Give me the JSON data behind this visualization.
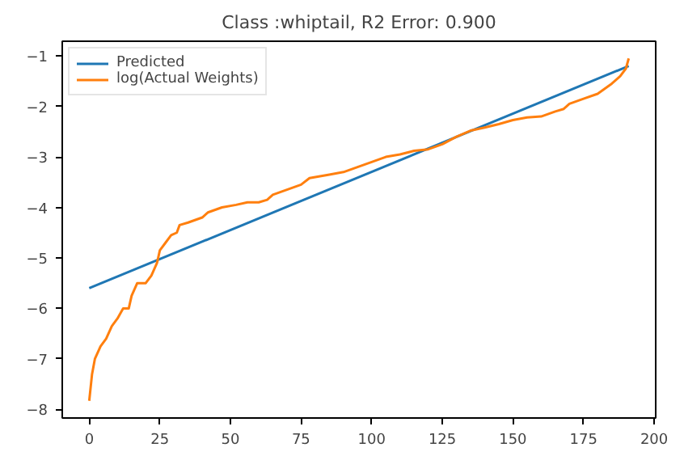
{
  "chart_data": {
    "type": "line",
    "title": "Class :whiptail, R2 Error: 0.900",
    "xlim": [
      -9.55,
      200.55
    ],
    "ylim": [
      -8.17,
      -0.71
    ],
    "xticks": [
      0,
      25,
      50,
      75,
      100,
      125,
      150,
      175,
      200
    ],
    "yticks": [
      -8,
      -7,
      -6,
      -5,
      -4,
      -3,
      -2,
      -1
    ],
    "grid": false,
    "legend": "top left",
    "series": [
      {
        "name": "Predicted",
        "color": "#1f77b4",
        "x": [
          0,
          191
        ],
        "values": [
          -5.6,
          -1.2
        ]
      },
      {
        "name": "log(Actual Weights)",
        "color": "#ff7f0e",
        "x": [
          0,
          1,
          2,
          4,
          6,
          8,
          10,
          12,
          14,
          15,
          17,
          20,
          22,
          24,
          25,
          27,
          29,
          31,
          32,
          35,
          40,
          42,
          47,
          52,
          56,
          60,
          63,
          65,
          70,
          75,
          78,
          85,
          90,
          95,
          100,
          105,
          110,
          115,
          120,
          125,
          130,
          135,
          140,
          145,
          150,
          155,
          160,
          165,
          168,
          170,
          175,
          180,
          185,
          188,
          190,
          191
        ],
        "values": [
          -7.83,
          -7.3,
          -7.0,
          -6.75,
          -6.6,
          -6.35,
          -6.2,
          -6.0,
          -6.0,
          -5.75,
          -5.5,
          -5.5,
          -5.35,
          -5.1,
          -4.85,
          -4.7,
          -4.55,
          -4.5,
          -4.35,
          -4.3,
          -4.2,
          -4.1,
          -4.0,
          -3.95,
          -3.9,
          -3.9,
          -3.85,
          -3.75,
          -3.65,
          -3.55,
          -3.42,
          -3.35,
          -3.3,
          -3.2,
          -3.1,
          -3.0,
          -2.95,
          -2.88,
          -2.85,
          -2.75,
          -2.6,
          -2.48,
          -2.42,
          -2.35,
          -2.27,
          -2.22,
          -2.2,
          -2.1,
          -2.05,
          -1.95,
          -1.85,
          -1.75,
          -1.55,
          -1.4,
          -1.25,
          -1.05
        ]
      }
    ]
  }
}
